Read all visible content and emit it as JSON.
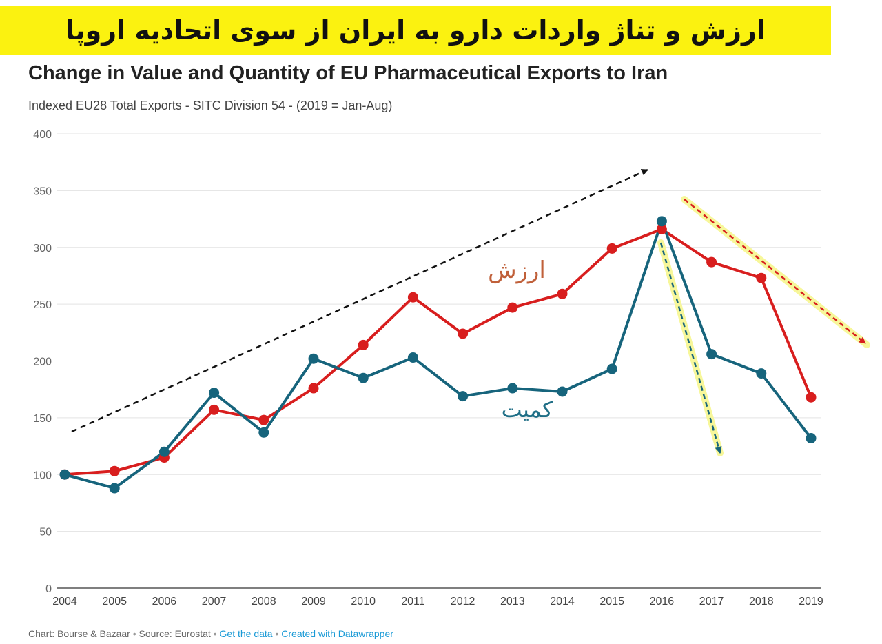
{
  "banner": {
    "text": "ارزش و تناژ واردات دارو به ایران از سوی اتحادیه اروپا"
  },
  "colors": {
    "banner_bg": "#fbf210",
    "value_series": "#d81e1e",
    "quantity_series": "#16647c",
    "link": "#1a9ad6",
    "highlight": "#f7f79a"
  },
  "chart_data": {
    "type": "line",
    "title": "Change in Value and Quantity of EU Pharmaceutical Exports to Iran",
    "subtitle": "Indexed EU28 Total Exports - SITC Division 54 - (2019 = Jan-Aug)",
    "xlabel": "",
    "ylabel": "",
    "ylim": [
      0,
      400
    ],
    "yticks": [
      0,
      50,
      100,
      150,
      200,
      250,
      300,
      350,
      400
    ],
    "grid": true,
    "categories": [
      "2004",
      "2005",
      "2006",
      "2007",
      "2008",
      "2009",
      "2010",
      "2011",
      "2012",
      "2013",
      "2014",
      "2015",
      "2016",
      "2017",
      "2018",
      "2019"
    ],
    "series": [
      {
        "name": "ارزش",
        "key": "value",
        "values": [
          100,
          103,
          115,
          157,
          148,
          176,
          214,
          256,
          224,
          247,
          259,
          299,
          316,
          287,
          273,
          168
        ]
      },
      {
        "name": "کمیت",
        "key": "quantity",
        "values": [
          100,
          88,
          120,
          172,
          137,
          202,
          185,
          203,
          169,
          176,
          173,
          193,
          323,
          206,
          189,
          132
        ]
      }
    ],
    "annotations": [
      {
        "kind": "label",
        "text": "ارزش",
        "series": "value"
      },
      {
        "kind": "label",
        "text": "کمیت",
        "series": "quantity"
      },
      {
        "kind": "trend-arrow",
        "meaning": "upward trend 2004-2016"
      },
      {
        "kind": "trend-arrow",
        "meaning": "quantity decline after 2016"
      },
      {
        "kind": "trend-arrow",
        "meaning": "value decline after 2016"
      }
    ]
  },
  "footer": {
    "credit": "Chart: Bourse & Bazaar",
    "source": "Source: Eurostat",
    "get_data": "Get the data",
    "created_with": "Created with Datawrapper",
    "separator": "•"
  }
}
